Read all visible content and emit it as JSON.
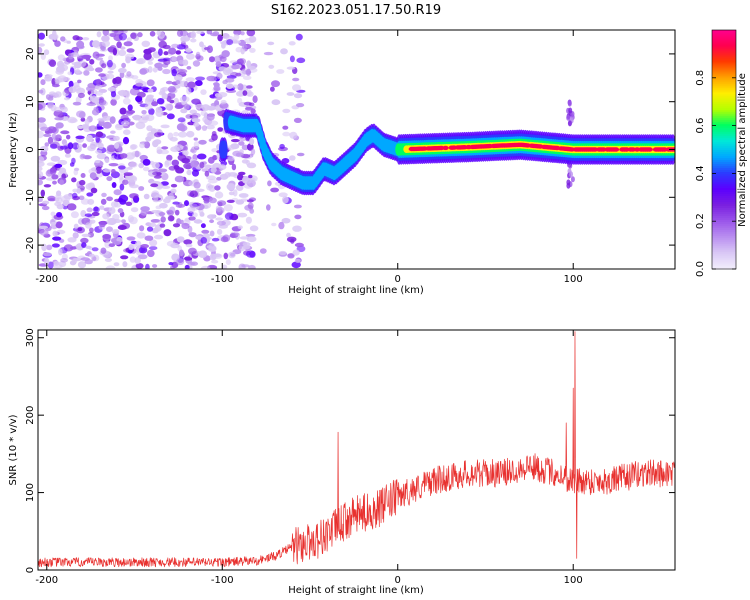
{
  "title": "S162.2023.051.17.50.R19",
  "colors": {
    "snr_line": "#e8312f",
    "axis": "#000000",
    "background": "#ffffff",
    "colormap": [
      "#f2eefc",
      "#d9c7f5",
      "#b98ef0",
      "#9a55ea",
      "#7a1fe0",
      "#5b00ff",
      "#2b3cff",
      "#00a8ff",
      "#00e8d8",
      "#00ff60",
      "#b6ff00",
      "#ffee00",
      "#ffa000",
      "#ff3a00",
      "#ff0050",
      "#ff0090"
    ]
  },
  "chart_data": [
    {
      "type": "heatmap",
      "name": "spectrogram",
      "xlabel": "Height of straight line (km)",
      "ylabel": "Frequency (Hz)",
      "xlim": [
        -205,
        158
      ],
      "ylim": [
        -25,
        25
      ],
      "xticks": [
        -200,
        -100,
        0,
        100
      ],
      "yticks": [
        -20,
        -10,
        0,
        10,
        20
      ],
      "ridge": [
        {
          "x": -98,
          "y": 6
        },
        {
          "x": -88,
          "y": 5
        },
        {
          "x": -80,
          "y": 5
        },
        {
          "x": -76,
          "y": 0
        },
        {
          "x": -72,
          "y": -3
        },
        {
          "x": -66,
          "y": -5
        },
        {
          "x": -60,
          "y": -6
        },
        {
          "x": -54,
          "y": -7
        },
        {
          "x": -48,
          "y": -7
        },
        {
          "x": -42,
          "y": -4
        },
        {
          "x": -36,
          "y": -5
        },
        {
          "x": -30,
          "y": -3
        },
        {
          "x": -24,
          "y": -1
        },
        {
          "x": -18,
          "y": 2
        },
        {
          "x": -14,
          "y": 3
        },
        {
          "x": -8,
          "y": 1
        },
        {
          "x": 0,
          "y": 0
        },
        {
          "x": 40,
          "y": 0.5
        },
        {
          "x": 70,
          "y": 1
        },
        {
          "x": 100,
          "y": 0
        },
        {
          "x": 158,
          "y": 0
        }
      ],
      "colorbar": {
        "label": "Normalized spectral amplitude",
        "range": [
          0,
          1
        ],
        "ticks": [
          0.0,
          0.2,
          0.4,
          0.6,
          0.8
        ],
        "tick_labels": [
          "0.0",
          "0.2",
          "0.4",
          "0.6",
          "0.8"
        ]
      }
    },
    {
      "type": "line",
      "name": "snr",
      "xlabel": "Height of straight line (km)",
      "ylabel": "SNR (10 * v/v)",
      "xlim": [
        -205,
        158
      ],
      "ylim": [
        0,
        310
      ],
      "xticks": [
        -200,
        -100,
        0,
        100
      ],
      "yticks": [
        0,
        100,
        200,
        300
      ],
      "trend": [
        {
          "x": -205,
          "y": 10
        },
        {
          "x": -100,
          "y": 10
        },
        {
          "x": -80,
          "y": 12
        },
        {
          "x": -70,
          "y": 18
        },
        {
          "x": -60,
          "y": 30
        },
        {
          "x": -45,
          "y": 40
        },
        {
          "x": -35,
          "y": 55
        },
        {
          "x": -25,
          "y": 70
        },
        {
          "x": -10,
          "y": 80
        },
        {
          "x": 0,
          "y": 95
        },
        {
          "x": 20,
          "y": 115
        },
        {
          "x": 40,
          "y": 125
        },
        {
          "x": 60,
          "y": 125
        },
        {
          "x": 75,
          "y": 135
        },
        {
          "x": 90,
          "y": 125
        },
        {
          "x": 100,
          "y": 115
        },
        {
          "x": 120,
          "y": 115
        },
        {
          "x": 140,
          "y": 125
        },
        {
          "x": 158,
          "y": 125
        }
      ],
      "spikes": [
        {
          "x": -34,
          "y": 178
        },
        {
          "x": 96,
          "y": 190
        },
        {
          "x": 100,
          "y": 235
        },
        {
          "x": 101,
          "y": 308
        },
        {
          "x": 102,
          "y": 15
        }
      ]
    }
  ]
}
